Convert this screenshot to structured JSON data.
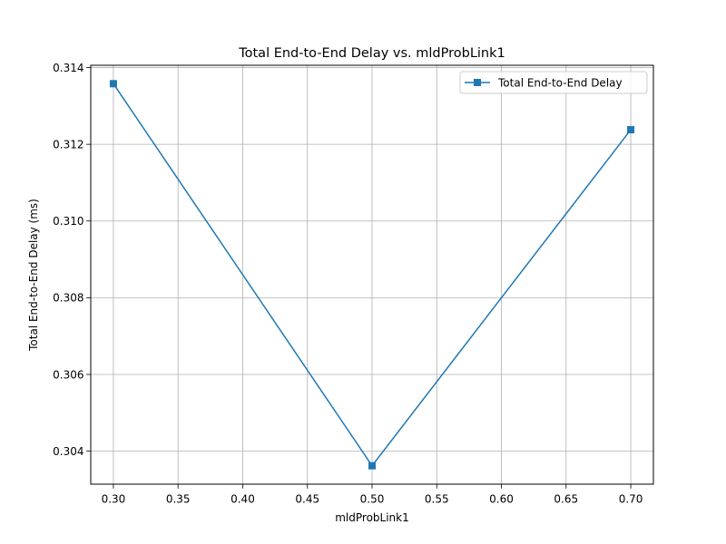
{
  "chart_data": {
    "type": "line",
    "title": "Total End-to-End Delay vs. mldProbLink1",
    "xlabel": "mldProbLink1",
    "ylabel": "Total End-to-End Delay (ms)",
    "x": [
      0.3,
      0.5,
      0.7
    ],
    "series": [
      {
        "name": "Total End-to-End Delay",
        "values": [
          0.31358,
          0.30362,
          0.31238
        ],
        "color": "#1f77b4",
        "marker": "square"
      }
    ],
    "xlim": [
      0.2825,
      0.7175
    ],
    "ylim": [
      0.30314,
      0.31406
    ],
    "xticks": [
      0.3,
      0.35,
      0.4,
      0.45,
      0.5,
      0.55,
      0.6,
      0.65,
      0.7
    ],
    "xtick_labels": [
      "0.30",
      "0.35",
      "0.40",
      "0.45",
      "0.50",
      "0.55",
      "0.60",
      "0.65",
      "0.70"
    ],
    "yticks": [
      0.304,
      0.306,
      0.308,
      0.31,
      0.312,
      0.314
    ],
    "ytick_labels": [
      "0.304",
      "0.306",
      "0.308",
      "0.310",
      "0.312",
      "0.314"
    ],
    "grid": true,
    "legend": "upper right"
  }
}
